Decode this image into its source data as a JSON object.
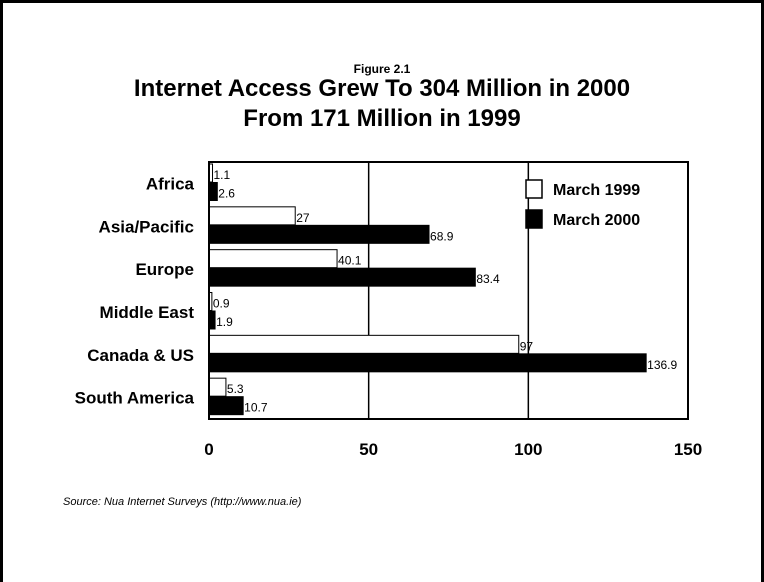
{
  "figure_label": "Figure 2.1",
  "title_line1": "Internet Access Grew To 304 Million in 2000",
  "title_line2": "From 171 Million in 1999",
  "source": "Source: Nua Internet Surveys (http://www.nua.ie)",
  "chart_data": {
    "type": "bar",
    "orientation": "horizontal",
    "categories": [
      "Africa",
      "Asia/Pacific",
      "Europe",
      "Middle East",
      "Canada & US",
      "South America"
    ],
    "series": [
      {
        "name": "March 1999",
        "values": [
          1.1,
          27,
          40.1,
          0.9,
          97,
          5.3
        ],
        "color": "#ffffff",
        "labels": [
          "1.1",
          "27",
          "40.1",
          "0.9",
          "97",
          "5.3"
        ]
      },
      {
        "name": "March 2000",
        "values": [
          2.6,
          68.9,
          83.4,
          1.9,
          136.9,
          10.7
        ],
        "color": "#000000",
        "labels": [
          "2.6",
          "68.9",
          "83.4",
          "1.9",
          "136.9",
          "10.7"
        ]
      }
    ],
    "xlim": [
      0,
      150
    ],
    "xticks": [
      "0",
      "50",
      "100",
      "150"
    ],
    "grid": true,
    "legend_position": "top-right"
  }
}
